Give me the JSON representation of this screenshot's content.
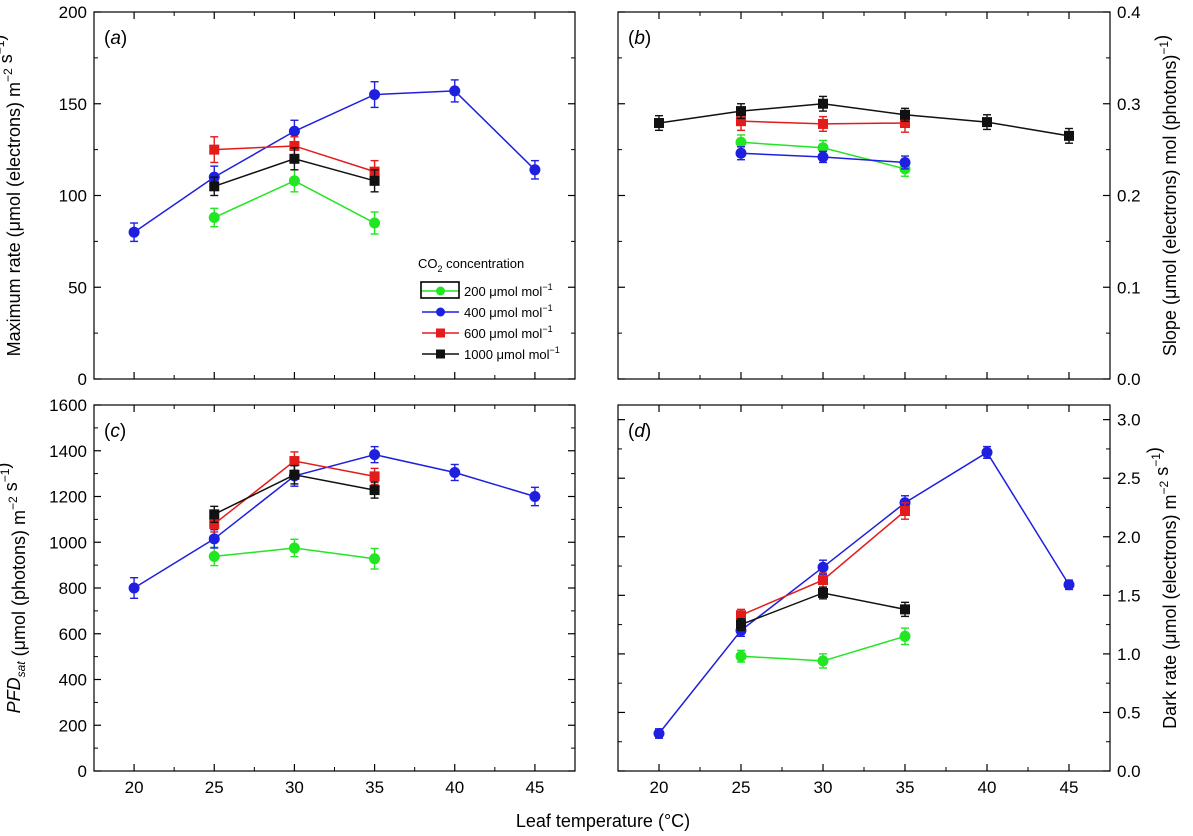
{
  "figure": {
    "xlabel": "Leaf temperature (°C)",
    "legend": {
      "title_main": "CO",
      "title_sub": "2",
      "title_rest": " concentration",
      "entries": [
        {
          "value": "200",
          "unit": " μmol mol",
          "sup": "−1"
        },
        {
          "value": "400",
          "unit": " μmol mol",
          "sup": "−1"
        },
        {
          "value": "600",
          "unit": " μmol mol",
          "sup": "−1"
        },
        {
          "value": "1000",
          "unit": " μmol mol",
          "sup": "−1"
        }
      ]
    }
  },
  "colors": {
    "200": "#22e622",
    "400": "#1f1fe0",
    "600": "#e31b1b",
    "1000": "#111111"
  },
  "chart_data": [
    {
      "type": "line",
      "panel": "(a)",
      "ylabel": "Maximum rate (μmol (electrons) m−2 s−1)",
      "xlim": [
        17.5,
        47.5
      ],
      "ylim": [
        0,
        200
      ],
      "yticks": [
        0,
        50,
        100,
        150,
        200
      ],
      "xticks": [
        20,
        25,
        30,
        35,
        40,
        45
      ],
      "legend_position": "right-middle",
      "series": [
        {
          "name": "200 μmol mol−1",
          "key": "200",
          "marker": "circle",
          "x": [
            25,
            30,
            35
          ],
          "y": [
            88,
            108,
            85
          ],
          "err": [
            5,
            6,
            6
          ]
        },
        {
          "name": "400 μmol mol−1",
          "key": "400",
          "marker": "circle",
          "x": [
            20,
            25,
            30,
            35,
            40,
            45
          ],
          "y": [
            80,
            110,
            135,
            155,
            157,
            114
          ],
          "err": [
            5,
            6,
            6,
            7,
            6,
            5
          ]
        },
        {
          "name": "600 μmol mol−1",
          "key": "600",
          "marker": "square",
          "x": [
            25,
            30,
            35
          ],
          "y": [
            125,
            127,
            113
          ],
          "err": [
            7,
            5,
            6
          ]
        },
        {
          "name": "1000 μmol mol−1",
          "key": "1000",
          "marker": "square",
          "x": [
            25,
            30,
            35
          ],
          "y": [
            105,
            120,
            108
          ],
          "err": [
            5,
            6,
            6
          ]
        }
      ]
    },
    {
      "type": "line",
      "panel": "(b)",
      "ylabel": "Slope (μmol (electrons) mol (photons)−1)",
      "xlim": [
        17.5,
        47.5
      ],
      "ylim": [
        0,
        0.4
      ],
      "yticks": [
        0.0,
        0.1,
        0.2,
        0.3,
        0.4
      ],
      "xticks": [
        20,
        25,
        30,
        35,
        40,
        45
      ],
      "series": [
        {
          "name": "200 μmol mol−1",
          "key": "200",
          "marker": "circle",
          "x": [
            25,
            30,
            35
          ],
          "y": [
            0.258,
            0.252,
            0.229
          ],
          "err": [
            0.008,
            0.008,
            0.008
          ]
        },
        {
          "name": "400 μmol mol−1",
          "key": "400",
          "marker": "circle",
          "x": [
            25,
            30,
            35
          ],
          "y": [
            0.246,
            0.242,
            0.236
          ],
          "err": [
            0.007,
            0.006,
            0.007
          ]
        },
        {
          "name": "600 μmol mol−1",
          "key": "600",
          "marker": "square",
          "x": [
            25,
            30,
            35
          ],
          "y": [
            0.281,
            0.278,
            0.279
          ],
          "err": [
            0.01,
            0.008,
            0.01
          ]
        },
        {
          "name": "1000 μmol mol−1",
          "key": "1000",
          "marker": "square",
          "x": [
            20,
            25,
            30,
            35,
            40,
            45
          ],
          "y": [
            0.279,
            0.292,
            0.3,
            0.288,
            0.28,
            0.265
          ],
          "err": [
            0.008,
            0.008,
            0.008,
            0.007,
            0.008,
            0.008
          ]
        }
      ]
    },
    {
      "type": "line",
      "panel": "(c)",
      "ylabel_italic": "PFD",
      "ylabel_sub": "sat",
      "ylabel": " (μmol (photons) m−2 s−1)",
      "xlim": [
        17.5,
        47.5
      ],
      "ylim": [
        0,
        1600
      ],
      "yticks": [
        0,
        200,
        400,
        600,
        800,
        1000,
        1200,
        1400,
        1600
      ],
      "xticks": [
        20,
        25,
        30,
        35,
        40,
        45
      ],
      "series": [
        {
          "name": "200 μmol mol−1",
          "key": "200",
          "marker": "circle",
          "x": [
            25,
            30,
            35
          ],
          "y": [
            938,
            975,
            928
          ],
          "err": [
            40,
            38,
            45
          ]
        },
        {
          "name": "400 μmol mol−1",
          "key": "400",
          "marker": "circle",
          "x": [
            20,
            25,
            30,
            35,
            40,
            45
          ],
          "y": [
            800,
            1015,
            1290,
            1383,
            1305,
            1200
          ],
          "err": [
            45,
            40,
            45,
            35,
            35,
            40
          ]
        },
        {
          "name": "600 μmol mol−1",
          "key": "600",
          "marker": "square",
          "x": [
            25,
            30,
            35
          ],
          "y": [
            1080,
            1355,
            1288
          ],
          "err": [
            35,
            40,
            35
          ]
        },
        {
          "name": "1000 μmol mol−1",
          "key": "1000",
          "marker": "square",
          "x": [
            25,
            30,
            35
          ],
          "y": [
            1122,
            1295,
            1228
          ],
          "err": [
            35,
            40,
            35
          ]
        }
      ]
    },
    {
      "type": "line",
      "panel": "(d)",
      "ylabel": "Dark rate (μmol (electrons) m−2 s−1)",
      "xlim": [
        17.5,
        47.5
      ],
      "ylim": [
        0,
        3.125
      ],
      "yticks": [
        0.0,
        0.5,
        1.0,
        1.5,
        2.0,
        2.5,
        3.0
      ],
      "xticks": [
        20,
        25,
        30,
        35,
        40,
        45
      ],
      "series": [
        {
          "name": "200 μmol mol−1",
          "key": "200",
          "marker": "circle",
          "x": [
            25,
            30,
            35
          ],
          "y": [
            0.98,
            0.94,
            1.15
          ],
          "err": [
            0.05,
            0.06,
            0.07
          ]
        },
        {
          "name": "400 μmol mol−1",
          "key": "400",
          "marker": "circle",
          "x": [
            20,
            25,
            30,
            35,
            40,
            45
          ],
          "y": [
            0.32,
            1.2,
            1.74,
            2.29,
            2.72,
            1.59
          ],
          "err": [
            0.04,
            0.05,
            0.06,
            0.06,
            0.05,
            0.04
          ]
        },
        {
          "name": "600 μmol mol−1",
          "key": "600",
          "marker": "square",
          "x": [
            25,
            30,
            35
          ],
          "y": [
            1.33,
            1.63,
            2.22
          ],
          "err": [
            0.05,
            0.06,
            0.07
          ]
        },
        {
          "name": "1000 μmol mol−1",
          "key": "1000",
          "marker": "square",
          "x": [
            25,
            30,
            35
          ],
          "y": [
            1.25,
            1.52,
            1.38
          ],
          "err": [
            0.05,
            0.05,
            0.06
          ]
        }
      ]
    }
  ]
}
